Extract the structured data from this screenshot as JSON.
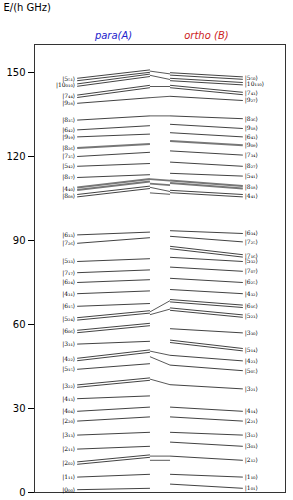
{
  "chart_data": {
    "type": "energy_levels",
    "y_label": "E/(h GHz)",
    "ylim": [
      0,
      160
    ],
    "yticks": [
      0,
      30,
      60,
      90,
      120,
      150
    ],
    "line_color": "#111111",
    "bold_color": "#777777",
    "groups": [
      {
        "name": "para(A)",
        "color": "#2222cc",
        "levels": [
          {
            "label": "|5₅₁⟩",
            "E_left": 147.5,
            "E_right": 150.5,
            "bold": false,
            "n": 2
          },
          {
            "label": "|10₀₁₀⟩",
            "E_left": 145.5,
            "E_right": 149.0,
            "bold": false,
            "n": 2
          },
          {
            "label": "|7₄₄⟩",
            "E_left": 141.5,
            "E_right": 145.0,
            "bold": false,
            "n": 2
          },
          {
            "label": "|9₂₈⟩",
            "E_left": 139.0,
            "E_right": 141.0,
            "bold": false,
            "n": 1
          },
          {
            "label": "|8₃₅⟩",
            "E_left": 133.0,
            "E_right": 134.5,
            "bold": false,
            "n": 1
          },
          {
            "label": "|6₄₂⟩",
            "E_left": 129.5,
            "E_right": 131.0,
            "bold": false,
            "n": 1
          },
          {
            "label": "|9₁₉⟩",
            "E_left": 127.0,
            "E_right": 128.0,
            "bold": false,
            "n": 1
          },
          {
            "label": "|8₂₆⟩",
            "E_left": 123.0,
            "E_right": 124.5,
            "bold": true,
            "n": 1
          },
          {
            "label": "|7₃₅⟩",
            "E_left": 120.0,
            "E_right": 121.5,
            "bold": false,
            "n": 1
          },
          {
            "label": "|5₄₂⟩",
            "E_left": 116.5,
            "E_right": 117.5,
            "bold": false,
            "n": 1
          },
          {
            "label": "|8₁₇⟩",
            "E_left": 112.5,
            "E_right": 113.5,
            "bold": false,
            "n": 1
          },
          {
            "label": "|4₄₀⟩",
            "E_left": 108.5,
            "E_right": 111.5,
            "bold": true,
            "n": 2
          },
          {
            "label": "|8₀₈⟩",
            "E_left": 106.0,
            "E_right": 109.0,
            "bold": false,
            "n": 2
          },
          {
            "label": "|6₃₃⟩",
            "E_left": 92.0,
            "E_right": 93.0,
            "bold": false,
            "n": 1
          },
          {
            "label": "|7₂₆⟩",
            "E_left": 89.0,
            "E_right": 91.0,
            "bold": false,
            "n": 1
          },
          {
            "label": "|5₃₃⟩",
            "E_left": 82.5,
            "E_right": 83.5,
            "bold": false,
            "n": 1
          },
          {
            "label": "|7₁₇⟩",
            "E_left": 78.5,
            "E_right": 79.5,
            "bold": false,
            "n": 1
          },
          {
            "label": "|6₂₄⟩",
            "E_left": 75.0,
            "E_right": 76.0,
            "bold": false,
            "n": 1
          },
          {
            "label": "|4₃₁⟩",
            "E_left": 71.0,
            "E_right": 72.0,
            "bold": false,
            "n": 1
          },
          {
            "label": "|6₁₅⟩",
            "E_left": 66.5,
            "E_right": 67.5,
            "bold": false,
            "n": 1
          },
          {
            "label": "|5₂₄⟩",
            "E_left": 62.0,
            "E_right": 64.5,
            "bold": false,
            "n": 2
          },
          {
            "label": "|6₀₆⟩",
            "E_left": 57.5,
            "E_right": 60.0,
            "bold": false,
            "n": 2
          },
          {
            "label": "|3₃₁⟩",
            "E_left": 53.0,
            "E_right": 54.0,
            "bold": false,
            "n": 1
          },
          {
            "label": "|4₂₂⟩",
            "E_left": 47.5,
            "E_right": 50.5,
            "bold": false,
            "n": 2
          },
          {
            "label": "|5₁₅⟩",
            "E_left": 44.0,
            "E_right": 46.0,
            "bold": false,
            "n": 1
          },
          {
            "label": "|3₂₂⟩",
            "E_left": 38.0,
            "E_right": 40.5,
            "bold": false,
            "n": 2
          },
          {
            "label": "|4₁₃⟩",
            "E_left": 33.5,
            "E_right": 34.5,
            "bold": false,
            "n": 1
          },
          {
            "label": "|4₀₄⟩",
            "E_left": 29.0,
            "E_right": 30.5,
            "bold": false,
            "n": 1
          },
          {
            "label": "|2₂₀⟩",
            "E_left": 25.5,
            "E_right": 27.0,
            "bold": false,
            "n": 1
          },
          {
            "label": "|3₁₃⟩",
            "E_left": 20.5,
            "E_right": 21.5,
            "bold": false,
            "n": 1
          },
          {
            "label": "|2₁₁⟩",
            "E_left": 15.5,
            "E_right": 16.5,
            "bold": false,
            "n": 1
          },
          {
            "label": "|2₀₂⟩",
            "E_left": 10.5,
            "E_right": 13.0,
            "bold": false,
            "n": 2
          },
          {
            "label": "|1₁₁⟩",
            "E_left": 5.5,
            "E_right": 6.5,
            "bold": false,
            "n": 1
          },
          {
            "label": "|0₀₀⟩",
            "E_left": 1.0,
            "E_right": 1.5,
            "bold": false,
            "n": 1
          }
        ]
      },
      {
        "name": "ortho (B)",
        "color": "#cc2222",
        "levels": [
          {
            "label": "|5₅₀⟩",
            "E_left": 149.5,
            "E_right": 148.0,
            "bold": false,
            "n": 2
          },
          {
            "label": "|10₁₁₀⟩",
            "E_left": 147.5,
            "E_right": 146.0,
            "bold": false,
            "n": 2
          },
          {
            "label": "|7₄₃⟩",
            "E_left": 145.0,
            "E_right": 142.5,
            "bold": false,
            "n": 2
          },
          {
            "label": "|9₂₇⟩",
            "E_left": 141.5,
            "E_right": 140.0,
            "bold": false,
            "n": 1
          },
          {
            "label": "|8₃₆⟩",
            "E_left": 134.5,
            "E_right": 133.5,
            "bold": false,
            "n": 1
          },
          {
            "label": "|9₁₈⟩",
            "E_left": 131.5,
            "E_right": 130.0,
            "bold": false,
            "n": 1
          },
          {
            "label": "|6₄₃⟩",
            "E_left": 128.5,
            "E_right": 127.0,
            "bold": false,
            "n": 1
          },
          {
            "label": "|9₀₉⟩",
            "E_left": 125.5,
            "E_right": 124.0,
            "bold": true,
            "n": 1
          },
          {
            "label": "|7₃₄⟩",
            "E_left": 122.0,
            "E_right": 120.5,
            "bold": false,
            "n": 1
          },
          {
            "label": "|8₂₇⟩",
            "E_left": 118.0,
            "E_right": 116.5,
            "bold": false,
            "n": 1
          },
          {
            "label": "|5₄₁⟩",
            "E_left": 114.0,
            "E_right": 113.0,
            "bold": false,
            "n": 1
          },
          {
            "label": "|8₁₈⟩",
            "E_left": 111.0,
            "E_right": 109.0,
            "bold": true,
            "n": 2
          },
          {
            "label": "|4₄₁⟩",
            "E_left": 107.5,
            "E_right": 106.0,
            "bold": false,
            "n": 2
          },
          {
            "label": "|6₃₄⟩",
            "E_left": 93.5,
            "E_right": 92.5,
            "bold": false,
            "n": 1
          },
          {
            "label": "|7₂₅⟩",
            "E_left": 91.5,
            "E_right": 89.5,
            "bold": false,
            "n": 1
          },
          {
            "label": "|7₁₆⟩",
            "E_left": 87.5,
            "E_right": 84.5,
            "bold": false,
            "n": 2
          },
          {
            "label": "|5₃₂⟩",
            "E_left": 84.0,
            "E_right": 82.5,
            "bold": false,
            "n": 1
          },
          {
            "label": "|7₀₇⟩",
            "E_left": 80.5,
            "E_right": 79.0,
            "bold": false,
            "n": 1
          },
          {
            "label": "|6₂₅⟩",
            "E_left": 76.5,
            "E_right": 75.0,
            "bold": false,
            "n": 1
          },
          {
            "label": "|4₃₂⟩",
            "E_left": 72.5,
            "E_right": 71.0,
            "bold": false,
            "n": 1
          },
          {
            "label": "|6₁₆⟩",
            "E_left": 68.5,
            "E_right": 66.5,
            "bold": false,
            "n": 2
          },
          {
            "label": "|5₂₃⟩",
            "E_left": 65.5,
            "E_right": 63.0,
            "bold": false,
            "n": 2
          },
          {
            "label": "|3₃₀⟩",
            "E_left": 58.5,
            "E_right": 57.0,
            "bold": false,
            "n": 1
          },
          {
            "label": "|5₁₄⟩",
            "E_left": 54.0,
            "E_right": 51.0,
            "bold": false,
            "n": 2
          },
          {
            "label": "|4₂₃⟩",
            "E_left": 49.0,
            "E_right": 47.0,
            "bold": false,
            "n": 1
          },
          {
            "label": "|5₀₅⟩",
            "E_left": 45.5,
            "E_right": 43.5,
            "bold": false,
            "n": 1
          },
          {
            "label": "|3₂₁⟩",
            "E_left": 38.5,
            "E_right": 37.0,
            "bold": false,
            "n": 1
          },
          {
            "label": "|4₁₄⟩",
            "E_left": 30.5,
            "E_right": 29.0,
            "bold": false,
            "n": 1
          },
          {
            "label": "|2₂₁⟩",
            "E_left": 27.0,
            "E_right": 25.5,
            "bold": false,
            "n": 1
          },
          {
            "label": "|3₁₂⟩",
            "E_left": 21.5,
            "E_right": 20.5,
            "bold": false,
            "n": 1
          },
          {
            "label": "|3₀₃⟩",
            "E_left": 18.0,
            "E_right": 16.5,
            "bold": false,
            "n": 1
          },
          {
            "label": "|2₁₂⟩",
            "E_left": 13.0,
            "E_right": 11.5,
            "bold": false,
            "n": 1
          },
          {
            "label": "|1₁₀⟩",
            "E_left": 6.5,
            "E_right": 5.5,
            "bold": false,
            "n": 1
          },
          {
            "label": "|1₀₁⟩",
            "E_left": 3.0,
            "E_right": 1.5,
            "bold": false,
            "n": 1
          }
        ]
      }
    ],
    "connections": [
      {
        "para": 150.5,
        "ortho": 149.5,
        "bold": false
      },
      {
        "para": 149.0,
        "ortho": 147.5,
        "bold": false
      },
      {
        "para": 145.0,
        "ortho": 145.0,
        "bold": false
      },
      {
        "para": 141.0,
        "ortho": 141.5,
        "bold": false
      },
      {
        "para": 134.5,
        "ortho": 134.5,
        "bold": false
      },
      {
        "para": 111.9,
        "ortho": 111.4,
        "bold": true
      },
      {
        "para": 110.3,
        "ortho": 109.8,
        "bold": true
      },
      {
        "para": 109.0,
        "ortho": 107.5,
        "bold": false
      },
      {
        "para": 107.0,
        "ortho": 106.5,
        "bold": false
      },
      {
        "para": 64.5,
        "ortho": 68.5,
        "bold": false
      },
      {
        "para": 63.5,
        "ortho": 65.5,
        "bold": false
      },
      {
        "para": 50.5,
        "ortho": 49.0,
        "bold": false
      },
      {
        "para": 48.5,
        "ortho": 45.5,
        "bold": false
      },
      {
        "para": 40.5,
        "ortho": 38.5,
        "bold": false
      },
      {
        "para": 13.0,
        "ortho": 13.0,
        "bold": false
      },
      {
        "para": 11.5,
        "ortho": 11.5,
        "bold": false
      }
    ]
  }
}
